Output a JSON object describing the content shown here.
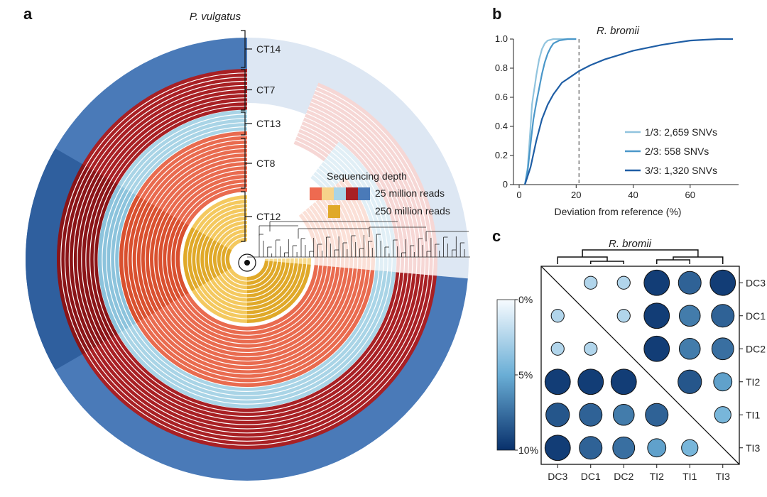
{
  "chart_data": [
    {
      "panel": "a",
      "type": "heatmap",
      "layout": "circular",
      "title": "P. vulgatus",
      "groups": [
        {
          "label": "CT14",
          "color": "#4a7ab8"
        },
        {
          "label": "CT7",
          "color": "#a82024"
        },
        {
          "label": "CT13",
          "color": "#a9d4e6"
        },
        {
          "label": "CT8",
          "color": "#e96b4f"
        },
        {
          "label": "CT12",
          "color": "#e0a929"
        }
      ],
      "legend": {
        "title": "Sequencing depth",
        "items": [
          {
            "label": "25 million reads",
            "colors": [
              "#ee6a50",
              "#f6d38a",
              "#a9d4e6",
              "#a82024",
              "#4a7ab8"
            ]
          },
          {
            "label": "250 million reads",
            "colors": [
              "#e0a929"
            ]
          }
        ]
      }
    },
    {
      "panel": "b",
      "type": "line",
      "title": "R. bromii",
      "xlabel": "Deviation from reference (%)",
      "ylabel": "",
      "xlim": [
        -2,
        77
      ],
      "ylim": [
        0,
        1.0
      ],
      "xticks": [
        0,
        20,
        40,
        60
      ],
      "yticks": [
        0,
        0.2,
        0.4,
        0.6,
        0.8,
        1.0
      ],
      "reference_line_x": 21,
      "series": [
        {
          "name": "1/3: 2,659 SNVs",
          "color": "#91c4de",
          "x": [
            2,
            3,
            4,
            4.5,
            5,
            5.5,
            6,
            7,
            8,
            9,
            10,
            12,
            15,
            20
          ],
          "y": [
            0,
            0.12,
            0.4,
            0.55,
            0.62,
            0.68,
            0.75,
            0.86,
            0.93,
            0.97,
            0.99,
            1.0,
            1.0,
            1.0
          ]
        },
        {
          "name": "2/3: 558 SNVs",
          "color": "#4a97c9",
          "x": [
            2,
            3,
            4,
            5,
            6,
            7,
            8,
            9,
            10,
            11,
            12,
            14,
            17,
            20
          ],
          "y": [
            0,
            0.1,
            0.28,
            0.45,
            0.56,
            0.66,
            0.76,
            0.84,
            0.9,
            0.94,
            0.97,
            0.99,
            1.0,
            1.0
          ]
        },
        {
          "name": "3/3: 1,320 SNVs",
          "color": "#1f5ea5",
          "x": [
            2,
            4,
            6,
            8,
            10,
            12,
            15,
            18,
            21,
            25,
            30,
            35,
            40,
            45,
            50,
            55,
            60,
            65,
            70,
            75
          ],
          "y": [
            0,
            0.12,
            0.3,
            0.45,
            0.55,
            0.62,
            0.7,
            0.74,
            0.78,
            0.82,
            0.86,
            0.89,
            0.92,
            0.94,
            0.96,
            0.975,
            0.99,
            0.995,
            1.0,
            1.0
          ]
        }
      ]
    },
    {
      "panel": "c",
      "type": "heatmap",
      "title": "R. bromii",
      "rows": [
        "DC3",
        "DC1",
        "DC2",
        "TI2",
        "TI1",
        "TI3"
      ],
      "cols": [
        "DC3",
        "DC1",
        "DC2",
        "TI2",
        "TI1",
        "TI3"
      ],
      "values_percent": [
        [
          null,
          2.5,
          2.5,
          9.5,
          8.0,
          9.5
        ],
        [
          2.5,
          null,
          2.5,
          9.5,
          7.0,
          8.0
        ],
        [
          2.5,
          2.5,
          null,
          9.5,
          7.0,
          7.5
        ],
        [
          9.5,
          9.5,
          9.5,
          null,
          8.5,
          5.5
        ],
        [
          8.5,
          8.0,
          7.0,
          8.0,
          null,
          4.5
        ],
        [
          9.5,
          8.0,
          7.5,
          5.5,
          4.5,
          null
        ]
      ],
      "colorbar": {
        "min": 0,
        "max": 10,
        "ticks": [
          "0%",
          "5%",
          "10%"
        ]
      }
    }
  ],
  "panels": {
    "a": {
      "label": "a"
    },
    "b": {
      "label": "b"
    },
    "c": {
      "label": "c"
    }
  }
}
